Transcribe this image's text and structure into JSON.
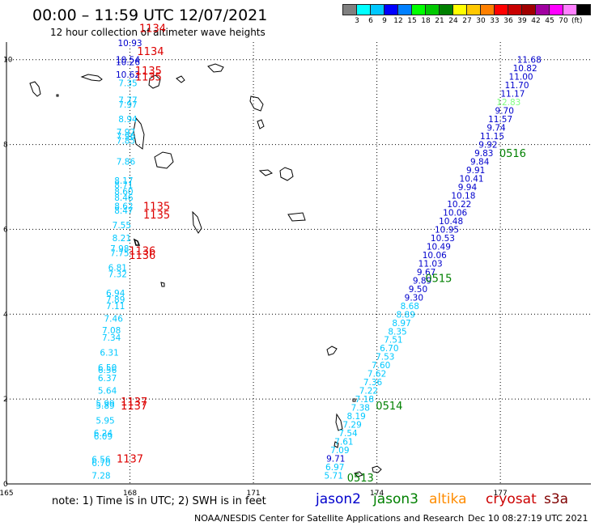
{
  "header": {
    "title": "00:00 – 11:59 UTC 12/07/2021",
    "subtitle": "12 hour collection of altimeter wave heights"
  },
  "legend": {
    "colors": [
      "#808080",
      "#00ffff",
      "#00c8ff",
      "#0000ff",
      "#0080ff",
      "#00ff00",
      "#00c800",
      "#008000",
      "#ffff00",
      "#ffc800",
      "#ff8000",
      "#ff0000",
      "#c80000",
      "#a00000",
      "#a000a0",
      "#ff00ff",
      "#ff80ff",
      "#000000"
    ],
    "labels": [
      "3",
      "6",
      "9",
      "12",
      "15",
      "18",
      "21",
      "24",
      "27",
      "30",
      "33",
      "36",
      "39",
      "42",
      "45",
      "70"
    ],
    "unit": "(ft)"
  },
  "axes": {
    "x_ticks": [
      "165",
      "168",
      "171",
      "174",
      "177"
    ],
    "y_ticks": [
      "0",
      "2",
      "4",
      "6",
      "8",
      "10"
    ]
  },
  "footer": {
    "note": "note: 1) Time is in UTC; 2) SWH is in feet",
    "credit": "NOAA/NESDIS Center for Satellite Applications and Research",
    "timestamp": "Dec 10 08:27:19 UTC 2021",
    "satellites": [
      {
        "name": "jason2",
        "color": "#0000cc"
      },
      {
        "name": "jason3",
        "color": "#008000"
      },
      {
        "name": "altika",
        "color": "#ff8c00"
      },
      {
        "name": "cryosat",
        "color": "#cc0000"
      },
      {
        "name": "s3a",
        "color": "#800000"
      }
    ]
  },
  "chart_data": {
    "type": "scatter",
    "xlim": [
      165,
      179.2
    ],
    "ylim": [
      0,
      10.3
    ],
    "grid": true,
    "tracks": [
      {
        "points": [
          {
            "x": 172.95,
            "y": 0.2,
            "v": "5.71",
            "color": "#00c8ff"
          },
          {
            "x": 172.98,
            "y": 0.4,
            "v": "6.97",
            "color": "#00c8ff"
          },
          {
            "x": 173.0,
            "y": 0.6,
            "v": "9.71",
            "color": "#0000cc"
          },
          {
            "x": 173.1,
            "y": 0.8,
            "v": "7.09",
            "color": "#00c8ff"
          },
          {
            "x": 173.2,
            "y": 1.0,
            "v": "7.61",
            "color": "#00c8ff"
          },
          {
            "x": 173.3,
            "y": 1.2,
            "v": "7.54",
            "color": "#00c8ff"
          },
          {
            "x": 173.4,
            "y": 1.4,
            "v": "7.29",
            "color": "#00c8ff"
          },
          {
            "x": 173.5,
            "y": 1.6,
            "v": "8.19",
            "color": "#00c8ff"
          },
          {
            "x": 173.6,
            "y": 1.8,
            "v": "7.38",
            "color": "#00c8ff"
          },
          {
            "x": 173.7,
            "y": 2.0,
            "v": "7.18",
            "color": "#00c8ff"
          },
          {
            "x": 173.8,
            "y": 2.2,
            "v": "7.22",
            "color": "#00c8ff"
          },
          {
            "x": 173.9,
            "y": 2.4,
            "v": "7.36",
            "color": "#00c8ff"
          },
          {
            "x": 174.0,
            "y": 2.6,
            "v": "7.62",
            "color": "#00c8ff"
          },
          {
            "x": 174.1,
            "y": 2.8,
            "v": "7.60",
            "color": "#00c8ff"
          },
          {
            "x": 174.2,
            "y": 3.0,
            "v": "7.53",
            "color": "#00c8ff"
          },
          {
            "x": 174.3,
            "y": 3.2,
            "v": "6.70",
            "color": "#00c8ff"
          },
          {
            "x": 174.4,
            "y": 3.4,
            "v": "7.51",
            "color": "#00c8ff"
          },
          {
            "x": 174.5,
            "y": 3.6,
            "v": "8.35",
            "color": "#00c8ff"
          },
          {
            "x": 174.6,
            "y": 3.8,
            "v": "8.97",
            "color": "#00c8ff"
          },
          {
            "x": 174.7,
            "y": 4.0,
            "v": "8.89",
            "color": "#00c8ff"
          },
          {
            "x": 174.8,
            "y": 4.2,
            "v": "8.68",
            "color": "#00c8ff"
          },
          {
            "x": 174.9,
            "y": 4.4,
            "v": "9.30",
            "color": "#0000cc"
          },
          {
            "x": 175.0,
            "y": 4.6,
            "v": "9.50",
            "color": "#0000cc"
          },
          {
            "x": 175.1,
            "y": 4.8,
            "v": "9.89",
            "color": "#0000cc"
          },
          {
            "x": 175.2,
            "y": 5.0,
            "v": "9.67",
            "color": "#0000cc"
          },
          {
            "x": 175.3,
            "y": 5.2,
            "v": "11.03",
            "color": "#0000cc"
          },
          {
            "x": 175.4,
            "y": 5.4,
            "v": "10.06",
            "color": "#0000cc"
          },
          {
            "x": 175.5,
            "y": 5.6,
            "v": "10.49",
            "color": "#0000cc"
          },
          {
            "x": 175.6,
            "y": 5.8,
            "v": "10.53",
            "color": "#0000cc"
          },
          {
            "x": 175.7,
            "y": 6.0,
            "v": "10.95",
            "color": "#0000cc"
          },
          {
            "x": 175.8,
            "y": 6.2,
            "v": "10.48",
            "color": "#0000cc"
          },
          {
            "x": 175.9,
            "y": 6.4,
            "v": "10.06",
            "color": "#0000cc"
          },
          {
            "x": 176.0,
            "y": 6.6,
            "v": "10.22",
            "color": "#0000cc"
          },
          {
            "x": 176.1,
            "y": 6.8,
            "v": "10.18",
            "color": "#0000cc"
          },
          {
            "x": 176.2,
            "y": 7.0,
            "v": "9.94",
            "color": "#0000cc"
          },
          {
            "x": 176.3,
            "y": 7.2,
            "v": "10.41",
            "color": "#0000cc"
          },
          {
            "x": 176.4,
            "y": 7.4,
            "v": "9.91",
            "color": "#0000cc"
          },
          {
            "x": 176.5,
            "y": 7.6,
            "v": "9.84",
            "color": "#0000cc"
          },
          {
            "x": 176.6,
            "y": 7.8,
            "v": "9.83",
            "color": "#0000cc"
          },
          {
            "x": 176.7,
            "y": 8.0,
            "v": "9.92",
            "color": "#0000cc"
          },
          {
            "x": 176.8,
            "y": 8.2,
            "v": "11.15",
            "color": "#0000cc"
          },
          {
            "x": 176.9,
            "y": 8.4,
            "v": "9.74",
            "color": "#0000cc"
          },
          {
            "x": 177.0,
            "y": 8.6,
            "v": "11.57",
            "color": "#0000cc"
          },
          {
            "x": 177.1,
            "y": 8.8,
            "v": "9.70",
            "color": "#0000cc"
          },
          {
            "x": 177.2,
            "y": 9.0,
            "v": "12.83",
            "color": "#80ff80"
          },
          {
            "x": 177.3,
            "y": 9.2,
            "v": "11.17",
            "color": "#0000cc"
          },
          {
            "x": 177.4,
            "y": 9.4,
            "v": "11.70",
            "color": "#0000cc"
          },
          {
            "x": 177.5,
            "y": 9.6,
            "v": "11.00",
            "color": "#0000cc"
          },
          {
            "x": 177.6,
            "y": 9.8,
            "v": "10.82",
            "color": "#0000cc"
          },
          {
            "x": 177.7,
            "y": 10.0,
            "v": "11.68",
            "color": "#0000cc"
          }
        ],
        "time_labels": [
          {
            "x": 173.6,
            "y": 0.15,
            "t": "0513",
            "color": "#008000"
          },
          {
            "x": 174.3,
            "y": 1.85,
            "t": "0514",
            "color": "#008000"
          },
          {
            "x": 175.5,
            "y": 4.85,
            "t": "0515",
            "color": "#008000"
          },
          {
            "x": 177.3,
            "y": 7.8,
            "t": "0516",
            "color": "#008000"
          }
        ]
      },
      {
        "points": [
          {
            "x": 167.3,
            "y": 0.2,
            "v": "7.28",
            "color": "#00c8ff"
          },
          {
            "x": 167.3,
            "y": 0.58,
            "v": "6.56",
            "color": "#00c8ff"
          },
          {
            "x": 167.3,
            "y": 0.5,
            "v": "6.70",
            "color": "#00c8ff"
          },
          {
            "x": 167.35,
            "y": 1.2,
            "v": "6.24",
            "color": "#00c8ff"
          },
          {
            "x": 167.35,
            "y": 1.13,
            "v": "6.09",
            "color": "#00c8ff"
          },
          {
            "x": 167.4,
            "y": 1.5,
            "v": "5.95",
            "color": "#00c8ff"
          },
          {
            "x": 167.4,
            "y": 1.9,
            "v": "5.99",
            "color": "#00c8ff"
          },
          {
            "x": 167.4,
            "y": 1.85,
            "v": "5.89",
            "color": "#00c8ff"
          },
          {
            "x": 167.45,
            "y": 2.2,
            "v": "5.64",
            "color": "#00c8ff"
          },
          {
            "x": 167.45,
            "y": 2.5,
            "v": "6.37",
            "color": "#00c8ff"
          },
          {
            "x": 167.45,
            "y": 2.75,
            "v": "6.50",
            "color": "#00c8ff"
          },
          {
            "x": 167.45,
            "y": 2.69,
            "v": "6.56",
            "color": "#00c8ff"
          },
          {
            "x": 167.5,
            "y": 3.1,
            "v": "6.31",
            "color": "#00c8ff"
          },
          {
            "x": 167.55,
            "y": 3.45,
            "v": "7.34",
            "color": "#00c8ff"
          },
          {
            "x": 167.55,
            "y": 3.62,
            "v": "7.08",
            "color": "#00c8ff"
          },
          {
            "x": 167.6,
            "y": 3.9,
            "v": "7.46",
            "color": "#00c8ff"
          },
          {
            "x": 167.65,
            "y": 4.2,
            "v": "7.11",
            "color": "#00c8ff"
          },
          {
            "x": 167.65,
            "y": 4.35,
            "v": "7.89",
            "color": "#00c8ff"
          },
          {
            "x": 167.65,
            "y": 4.5,
            "v": "6.94",
            "color": "#00c8ff"
          },
          {
            "x": 167.7,
            "y": 4.95,
            "v": "7.32",
            "color": "#00c8ff"
          },
          {
            "x": 167.7,
            "y": 5.1,
            "v": "6.81",
            "color": "#00c8ff"
          },
          {
            "x": 167.75,
            "y": 5.45,
            "v": "7.75",
            "color": "#00c8ff"
          },
          {
            "x": 167.75,
            "y": 5.55,
            "v": "7.98",
            "color": "#00c8ff"
          },
          {
            "x": 167.8,
            "y": 5.8,
            "v": "8.21",
            "color": "#00c8ff"
          },
          {
            "x": 167.8,
            "y": 6.1,
            "v": "7.55",
            "color": "#00c8ff"
          },
          {
            "x": 167.85,
            "y": 6.45,
            "v": "8.47",
            "color": "#00c8ff"
          },
          {
            "x": 167.85,
            "y": 6.55,
            "v": "8.62",
            "color": "#00c8ff"
          },
          {
            "x": 167.85,
            "y": 6.75,
            "v": "8.46",
            "color": "#00c8ff"
          },
          {
            "x": 167.85,
            "y": 6.9,
            "v": "8.60",
            "color": "#00c8ff"
          },
          {
            "x": 167.85,
            "y": 7.05,
            "v": "8.71",
            "color": "#00c8ff"
          },
          {
            "x": 167.85,
            "y": 7.15,
            "v": "8.17",
            "color": "#00c8ff"
          },
          {
            "x": 167.9,
            "y": 7.6,
            "v": "7.86",
            "color": "#00c8ff"
          },
          {
            "x": 167.9,
            "y": 8.1,
            "v": "7.85",
            "color": "#00c8ff"
          },
          {
            "x": 167.9,
            "y": 8.2,
            "v": "7.96",
            "color": "#00c8ff"
          },
          {
            "x": 167.9,
            "y": 8.3,
            "v": "7.97",
            "color": "#00c8ff"
          },
          {
            "x": 167.95,
            "y": 8.6,
            "v": "8.94",
            "color": "#00c8ff"
          },
          {
            "x": 167.95,
            "y": 8.95,
            "v": "7.97",
            "color": "#00c8ff"
          },
          {
            "x": 167.95,
            "y": 9.05,
            "v": "7.77",
            "color": "#00c8ff"
          },
          {
            "x": 167.95,
            "y": 9.45,
            "v": "7.35",
            "color": "#00c8ff"
          },
          {
            "x": 167.95,
            "y": 9.65,
            "v": "10.62",
            "color": "#0000cc"
          },
          {
            "x": 167.95,
            "y": 9.95,
            "v": "10.26",
            "color": "#0000cc"
          },
          {
            "x": 167.95,
            "y": 10.0,
            "v": "10.54",
            "color": "#0000cc"
          },
          {
            "x": 168.0,
            "y": 10.4,
            "v": "10.93",
            "color": "#0000cc"
          }
        ],
        "time_labels": [
          {
            "x": 168.0,
            "y": 0.6,
            "t": "1137",
            "color": "#dd0000"
          },
          {
            "x": 168.1,
            "y": 1.85,
            "t": "1137",
            "color": "#dd0000"
          },
          {
            "x": 168.1,
            "y": 1.95,
            "t": "1137",
            "color": "#dd0000"
          },
          {
            "x": 168.3,
            "y": 5.4,
            "t": "1136",
            "color": "#dd0000"
          },
          {
            "x": 168.3,
            "y": 5.5,
            "t": "1136",
            "color": "#dd0000"
          },
          {
            "x": 168.65,
            "y": 6.35,
            "t": "1135",
            "color": "#dd0000"
          },
          {
            "x": 168.65,
            "y": 6.55,
            "t": "1135",
            "color": "#dd0000"
          },
          {
            "x": 168.45,
            "y": 9.6,
            "t": "1135",
            "color": "#dd0000"
          },
          {
            "x": 168.45,
            "y": 9.75,
            "t": "1135",
            "color": "#dd0000"
          },
          {
            "x": 168.5,
            "y": 10.2,
            "t": "1134",
            "color": "#dd0000"
          },
          {
            "x": 168.55,
            "y": 10.75,
            "t": "1134",
            "color": "#dd0000"
          }
        ]
      }
    ]
  }
}
